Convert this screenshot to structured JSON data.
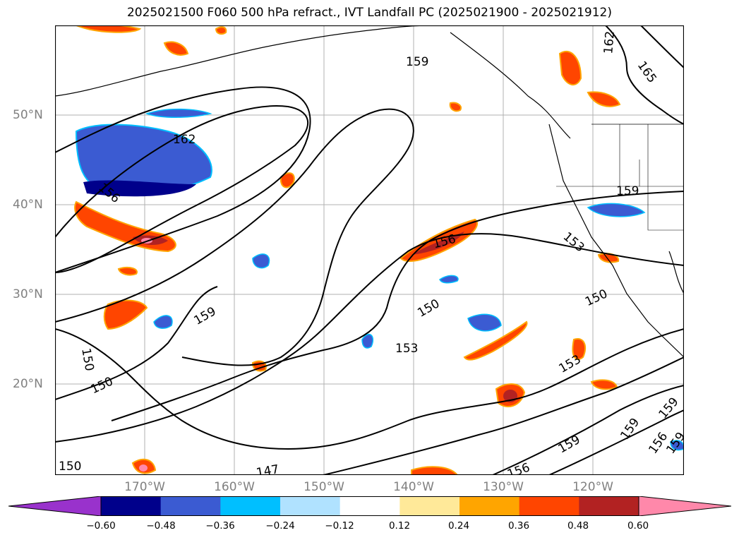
{
  "title": "2025021500 F060 500 hPa refract., IVT Landfall PC (2025021900 - 2025021912)",
  "lat_labels": [
    "50°N",
    "40°N",
    "30°N",
    "20°N"
  ],
  "lon_labels": [
    "170°W",
    "160°W",
    "150°W",
    "140°W",
    "130°W",
    "120°W"
  ],
  "contour_labels": [
    {
      "text": "159"
    },
    {
      "text": "162"
    },
    {
      "text": "165"
    },
    {
      "text": "162"
    },
    {
      "text": "159"
    },
    {
      "text": "156"
    },
    {
      "text": "153"
    },
    {
      "text": "150"
    },
    {
      "text": "150"
    },
    {
      "text": "159"
    },
    {
      "text": "153"
    },
    {
      "text": "150"
    },
    {
      "text": "150"
    },
    {
      "text": "153"
    },
    {
      "text": "159"
    },
    {
      "text": "159"
    },
    {
      "text": "156"
    },
    {
      "text": "159"
    },
    {
      "text": "156"
    },
    {
      "text": "150"
    },
    {
      "text": "147"
    },
    {
      "text": "156"
    },
    {
      "text": "159"
    }
  ],
  "colorbar": {
    "colors": [
      "#9932cc",
      "#00008b",
      "#3b5bd2",
      "#00bfff",
      "#b0e2ff",
      "#ffffff",
      "#ffe999",
      "#ffa500",
      "#ff4500",
      "#b22222",
      "#ff88aa"
    ],
    "ticks": [
      "−0.60",
      "−0.48",
      "−0.36",
      "−0.24",
      "−0.12",
      "0.12",
      "0.24",
      "0.36",
      "0.48",
      "0.60"
    ]
  }
}
